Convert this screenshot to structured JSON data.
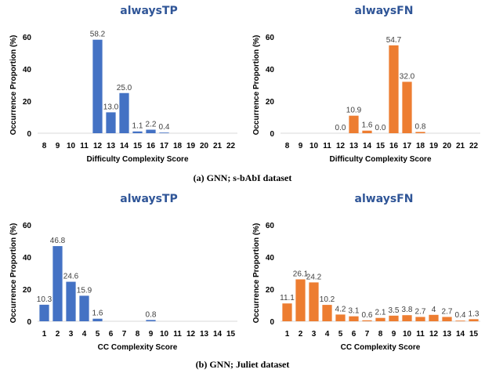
{
  "colors": {
    "blue": "#4472C4",
    "orange": "#ED7D31",
    "title": "#2F5597",
    "axis": "#D9D9D9"
  },
  "chart_data": [
    {
      "type": "bar",
      "title": "alwaysTP",
      "xlabel": "Difficulty Complexity Score",
      "ylabel": "Occurrence Proportion (%)",
      "ylim": [
        0,
        60
      ],
      "yticks": [
        0,
        20,
        40,
        60
      ],
      "categories": [
        "8",
        "9",
        "10",
        "11",
        "12",
        "13",
        "14",
        "15",
        "16",
        "17",
        "18",
        "19",
        "20",
        "21",
        "22"
      ],
      "values": [
        null,
        null,
        null,
        null,
        58.2,
        13.0,
        25.0,
        1.1,
        2.2,
        0.4,
        null,
        null,
        null,
        null,
        null
      ],
      "labels": [
        "",
        "",
        "",
        "",
        "58.2",
        "13.0",
        "25.0",
        "1.1",
        "2.2",
        "0.4",
        "",
        "",
        "",
        "",
        ""
      ],
      "color": "blue"
    },
    {
      "type": "bar",
      "title": "alwaysFN",
      "xlabel": "Difficulty Complexity Score",
      "ylabel": "Occurrence Proportion (%)",
      "ylim": [
        0,
        60
      ],
      "yticks": [
        0,
        20,
        40,
        60
      ],
      "categories": [
        "8",
        "9",
        "10",
        "11",
        "12",
        "13",
        "14",
        "15",
        "16",
        "17",
        "18",
        "19",
        "20",
        "21",
        "22"
      ],
      "values": [
        null,
        null,
        null,
        null,
        0.0,
        10.9,
        1.6,
        0.0,
        54.7,
        32.0,
        0.8,
        null,
        null,
        null,
        null
      ],
      "labels": [
        "",
        "",
        "",
        "",
        "0.0",
        "10.9",
        "1.6",
        "0.0",
        "54.7",
        "32.0",
        "0.8",
        "",
        "",
        "",
        ""
      ],
      "color": "orange"
    },
    {
      "type": "bar",
      "title": "alwaysTP",
      "xlabel": "CC Complexity Score",
      "ylabel": "Occurrence Proportion (%)",
      "ylim": [
        0,
        60
      ],
      "yticks": [
        0,
        20,
        40,
        60
      ],
      "categories": [
        "1",
        "2",
        "3",
        "4",
        "5",
        "6",
        "7",
        "8",
        "9",
        "10",
        "11",
        "12",
        "13",
        "14",
        "15"
      ],
      "values": [
        10.3,
        46.8,
        24.6,
        15.9,
        1.6,
        null,
        null,
        null,
        0.8,
        null,
        null,
        null,
        null,
        null,
        null
      ],
      "labels": [
        "10.3",
        "46.8",
        "24.6",
        "15.9",
        "1.6",
        "",
        "",
        "",
        "0.8",
        "",
        "",
        "",
        "",
        "",
        ""
      ],
      "color": "blue"
    },
    {
      "type": "bar",
      "title": "alwaysFN",
      "xlabel": "CC Complexity Score",
      "ylabel": "Occurrence Proportion (%)",
      "ylim": [
        0,
        60
      ],
      "yticks": [
        0,
        20,
        40,
        60
      ],
      "categories": [
        "1",
        "2",
        "3",
        "4",
        "5",
        "6",
        "7",
        "8",
        "9",
        "10",
        "11",
        "12",
        "13",
        "14",
        "15"
      ],
      "values": [
        11.1,
        26.1,
        24.2,
        10.2,
        4.2,
        3.1,
        0.6,
        2.1,
        3.5,
        3.8,
        2.7,
        4.0,
        2.7,
        0.4,
        1.3
      ],
      "labels": [
        "11.1",
        "26.1",
        "24.2",
        "10.2",
        "4.2",
        "3.1",
        "0.6",
        "2.1",
        "3.5",
        "3.8",
        "2.7",
        "4",
        "2.7",
        "0.4",
        "1.3"
      ],
      "color": "orange"
    }
  ],
  "captions": {
    "top": "(a) GNN; s-bAbI dataset",
    "bottom": "(b) GNN; Juliet dataset"
  }
}
